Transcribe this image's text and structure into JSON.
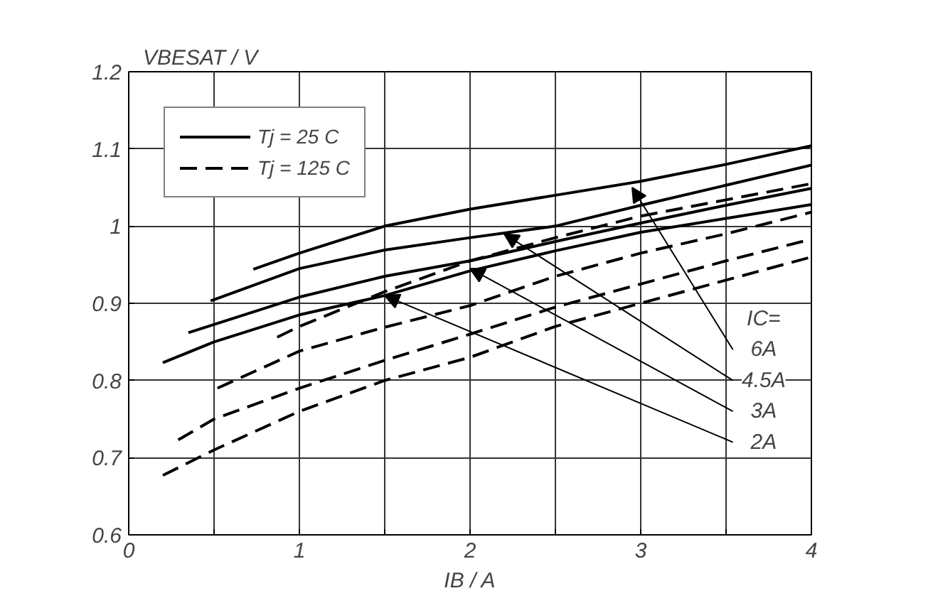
{
  "chart_data": {
    "type": "line",
    "xlabel": "IB / A",
    "ylabel": "VBESAT / V",
    "xlim": [
      0,
      4
    ],
    "ylim": [
      0.6,
      1.2
    ],
    "xticks": [
      0,
      {
        "value": 0.5,
        "label": null
      },
      1,
      {
        "value": 1.5,
        "label": null
      },
      2,
      {
        "value": 2.5,
        "label": null
      },
      3,
      {
        "value": 3.5,
        "label": null
      },
      4
    ],
    "yticks": [
      0.6,
      0.7,
      0.8,
      0.9,
      1,
      1.1,
      1.2
    ],
    "grid": true,
    "legend": "top left",
    "series": [
      {
        "name": "Tj = 25 C",
        "color": "#000000",
        "line_style": "solid",
        "x": [
          0.73,
          1,
          1.5,
          2,
          2.5,
          3,
          3.5,
          4
        ],
        "values": [
          0.944,
          0.965,
          1.0,
          1.022,
          1.04,
          1.058,
          1.08,
          1.104
        ]
      },
      {
        "color": "#000000",
        "line_style": "solid",
        "x": [
          0.48,
          1,
          1.5,
          2,
          2.5,
          3,
          3.5,
          4
        ],
        "values": [
          0.903,
          0.945,
          0.969,
          0.985,
          1.0,
          1.027,
          1.053,
          1.079
        ]
      },
      {
        "color": "#000000",
        "line_style": "solid",
        "x": [
          0.35,
          1,
          1.5,
          2,
          2.5,
          3,
          3.5,
          4
        ],
        "values": [
          0.862,
          0.908,
          0.935,
          0.955,
          0.98,
          1.004,
          1.027,
          1.049
        ]
      },
      {
        "color": "#000000",
        "line_style": "solid",
        "x": [
          0.2,
          0.5,
          1,
          1.5,
          2,
          2.5,
          3,
          3.5,
          4
        ],
        "values": [
          0.823,
          0.85,
          0.885,
          0.91,
          0.942,
          0.968,
          0.992,
          1.01,
          1.028
        ]
      },
      {
        "name": "Tj = 125 C",
        "color": "#000000",
        "line_style": "dashed",
        "x": [
          0.87,
          1,
          1.5,
          2,
          2.5,
          3,
          3.5,
          4
        ],
        "values": [
          0.856,
          0.87,
          0.915,
          0.955,
          0.985,
          1.013,
          1.034,
          1.055
        ]
      },
      {
        "color": "#000000",
        "line_style": "dashed",
        "x": [
          0.52,
          1,
          1.5,
          2,
          2.5,
          3,
          3.5,
          4
        ],
        "values": [
          0.79,
          0.838,
          0.869,
          0.897,
          0.935,
          0.965,
          0.99,
          1.018
        ]
      },
      {
        "color": "#000000",
        "line_style": "dashed",
        "x": [
          0.29,
          0.5,
          1,
          1.5,
          2,
          2.5,
          3,
          3.5,
          4
        ],
        "values": [
          0.723,
          0.75,
          0.79,
          0.826,
          0.86,
          0.895,
          0.925,
          0.955,
          0.983
        ]
      },
      {
        "color": "#000000",
        "line_style": "dashed",
        "x": [
          0.2,
          0.5,
          1,
          1.5,
          2,
          2.5,
          3,
          3.5,
          4
        ],
        "values": [
          0.677,
          0.71,
          0.76,
          0.8,
          0.83,
          0.87,
          0.9,
          0.93,
          0.96
        ]
      }
    ],
    "annotations": [
      "IC=",
      {
        "text": "6A",
        "x": 2.95,
        "y": 1.05
      },
      {
        "text": "4.5A",
        "x": 2.2,
        "y": 0.99
      },
      {
        "text": "3A",
        "x": 2.0,
        "y": 0.945
      },
      {
        "text": "2A",
        "x": 1.5,
        "y": 0.91
      }
    ]
  }
}
